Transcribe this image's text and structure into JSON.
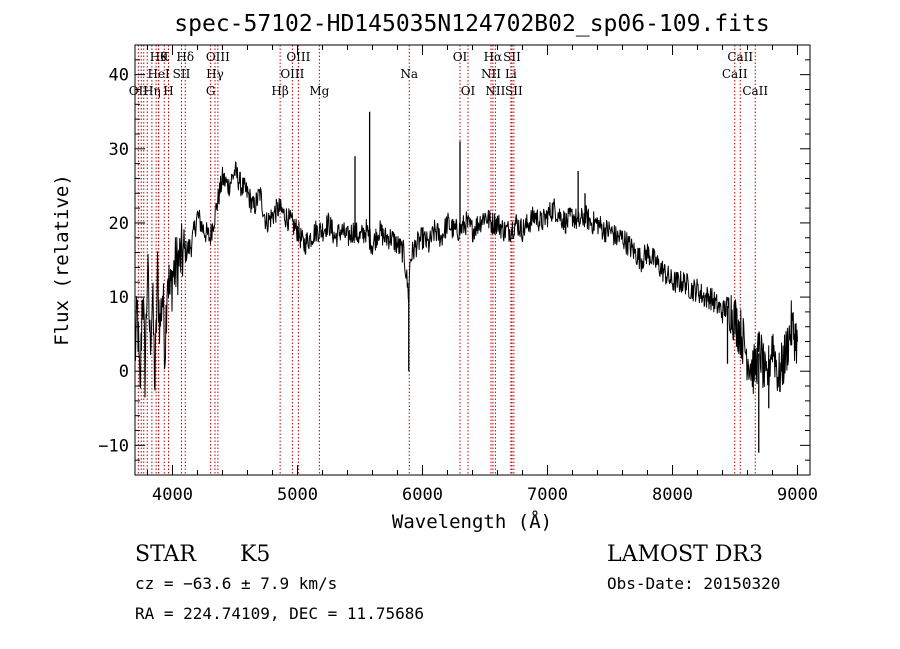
{
  "chart_data": {
    "type": "line",
    "title": "spec-57102-HD145035N124702B02_sp06-109.fits",
    "xlabel": "Wavelength (Å)",
    "ylabel": "Flux (relative)",
    "xlim": [
      3700,
      9100
    ],
    "ylim": [
      -14,
      44
    ],
    "x_ticks": [
      4000,
      5000,
      6000,
      7000,
      8000,
      9000
    ],
    "y_ticks": [
      -10,
      0,
      10,
      20,
      30,
      40
    ],
    "grid": false,
    "series": [
      {
        "x": [
          3700,
          3720,
          3740,
          3760,
          3780,
          3800,
          3820,
          3840,
          3860,
          3880,
          3900,
          3920,
          3940,
          3960,
          3980,
          4000,
          4050,
          4100,
          4150,
          4200,
          4250,
          4300,
          4350,
          4400,
          4450,
          4500,
          4550,
          4600,
          4650,
          4700,
          4750,
          4800,
          4850,
          4900,
          4950,
          5000,
          5050,
          5100,
          5150,
          5200,
          5250,
          5300,
          5350,
          5400,
          5450,
          5500,
          5550,
          5600,
          5650,
          5700,
          5750,
          5800,
          5850,
          5890,
          5900,
          5920,
          5950,
          6000,
          6050,
          6100,
          6150,
          6200,
          6250,
          6300,
          6350,
          6400,
          6450,
          6500,
          6550,
          6600,
          6650,
          6700,
          6750,
          6800,
          6850,
          6900,
          6950,
          7000,
          7050,
          7100,
          7150,
          7200,
          7250,
          7300,
          7350,
          7400,
          7450,
          7500,
          7550,
          7600,
          7650,
          7700,
          7750,
          7800,
          7850,
          7900,
          7950,
          8000,
          8050,
          8100,
          8150,
          8200,
          8250,
          8300,
          8350,
          8400,
          8450,
          8500,
          8550,
          8600,
          8650,
          8700,
          8750,
          8800,
          8850,
          8900,
          8950,
          9000
        ],
        "y": [
          2,
          8,
          -4,
          12,
          0,
          14,
          4,
          10,
          -2,
          13,
          6,
          11,
          3,
          14,
          10,
          13,
          15,
          16,
          17,
          21,
          19,
          18,
          22,
          26,
          25,
          27,
          25,
          24,
          22,
          24,
          20,
          21,
          22,
          21,
          20,
          19,
          17,
          18,
          19,
          19,
          20,
          18,
          19,
          18,
          19,
          18,
          19,
          17,
          19,
          18,
          18,
          17,
          16,
          10,
          15,
          16,
          17,
          18,
          17,
          19,
          18,
          20,
          19,
          19,
          20,
          19,
          20,
          21,
          20,
          20,
          19,
          19,
          20,
          19,
          20,
          21,
          20,
          21,
          22,
          21,
          20,
          21,
          20,
          21,
          20,
          20,
          19,
          19,
          18,
          18,
          17,
          16,
          15,
          16,
          15,
          14,
          13,
          12,
          12,
          12,
          11,
          11,
          10,
          10,
          9,
          8,
          9,
          7,
          5,
          2,
          0,
          3,
          -2,
          4,
          -1,
          2,
          6,
          4
        ]
      }
    ],
    "spikes": [
      {
        "x": 5577,
        "y": 35
      },
      {
        "x": 5460,
        "y": 29
      },
      {
        "x": 6300,
        "y": 31
      },
      {
        "x": 5890,
        "y": 0
      },
      {
        "x": 7245,
        "y": 27
      },
      {
        "x": 7300,
        "y": 24
      },
      {
        "x": 8440,
        "y": 1
      },
      {
        "x": 8690,
        "y": -11
      },
      {
        "x": 8770,
        "y": -5
      }
    ],
    "line_markers": [
      {
        "x": 3727,
        "label": "OII",
        "row": 3
      },
      {
        "x": 3750,
        "label": "",
        "row": 0
      },
      {
        "x": 3770,
        "label": "",
        "row": 0
      },
      {
        "x": 3798,
        "label": "",
        "row": 0
      },
      {
        "x": 3835,
        "label": "Hη",
        "row": 3
      },
      {
        "x": 3869,
        "label": "",
        "row": 0
      },
      {
        "x": 3889,
        "label": "Hθ",
        "row": 1
      },
      {
        "x": 3889,
        "label": "HeI",
        "row": 2
      },
      {
        "x": 3934,
        "label": "K",
        "row": 1
      },
      {
        "x": 3968,
        "label": "H",
        "row": 3
      },
      {
        "x": 4072,
        "label": "SII",
        "row": 2
      },
      {
        "x": 4102,
        "label": "Hδ",
        "row": 1
      },
      {
        "x": 4305,
        "label": "G",
        "row": 3
      },
      {
        "x": 4340,
        "label": "Hγ",
        "row": 2
      },
      {
        "x": 4363,
        "label": "OIII",
        "row": 1
      },
      {
        "x": 4861,
        "label": "Hβ",
        "row": 3
      },
      {
        "x": 4959,
        "label": "OIII",
        "row": 2
      },
      {
        "x": 5007,
        "label": "OIII",
        "row": 1
      },
      {
        "x": 5175,
        "label": "Mg",
        "row": 3
      },
      {
        "x": 5894,
        "label": "Na",
        "row": 2
      },
      {
        "x": 6300,
        "label": "OI",
        "row": 1
      },
      {
        "x": 6364,
        "label": "OI",
        "row": 3
      },
      {
        "x": 6548,
        "label": "NII",
        "row": 2
      },
      {
        "x": 6563,
        "label": "Hα",
        "row": 1
      },
      {
        "x": 6583,
        "label": "NII",
        "row": 3
      },
      {
        "x": 6707,
        "label": "Li",
        "row": 2
      },
      {
        "x": 6716,
        "label": "SII",
        "row": 1
      },
      {
        "x": 6731,
        "label": "SII",
        "row": 3
      },
      {
        "x": 8498,
        "label": "CaII",
        "row": 2
      },
      {
        "x": 8542,
        "label": "CaII",
        "row": 1
      },
      {
        "x": 8662,
        "label": "CaII",
        "row": 3
      }
    ]
  },
  "info": {
    "class": "STAR",
    "subclass": "K5",
    "survey": "LAMOST DR3",
    "cz": "cz = −63.6 ± 7.9 km/s",
    "obs_date": "Obs-Date: 20150320",
    "coords": "RA = 224.74109, DEC =  11.75686"
  },
  "colors": {
    "spectrum": "#000000",
    "line_marker": "#c00000",
    "axis": "#000000",
    "background": "#ffffff"
  }
}
